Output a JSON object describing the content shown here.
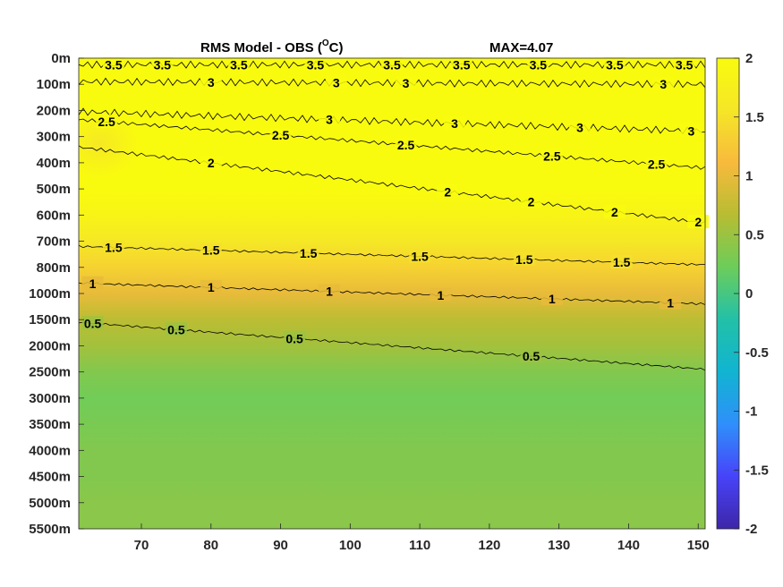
{
  "chart_data": {
    "type": "heatmap",
    "title": "RMS Model - OBS (",
    "title_unit_sup": "O",
    "title_unit_end": "C)",
    "max_label": "MAX=4.07",
    "xlabel": "",
    "ylabel": "",
    "x_ticks": [
      "70",
      "80",
      "90",
      "100",
      "110",
      "120",
      "130",
      "140",
      "150"
    ],
    "x_tick_values": [
      70,
      80,
      90,
      100,
      110,
      120,
      130,
      140,
      150
    ],
    "xlim": [
      61,
      151
    ],
    "y_ticks": [
      "0m",
      "100m",
      "200m",
      "300m",
      "400m",
      "500m",
      "600m",
      "700m",
      "800m",
      "1000m",
      "1500m",
      "2000m",
      "2500m",
      "3000m",
      "3500m",
      "4000m",
      "4500m",
      "5000m",
      "5500m"
    ],
    "colorbar": {
      "ticks": [
        "2",
        "1.5",
        "1",
        "0.5",
        "0",
        "-0.5",
        "-1",
        "-1.5",
        "-2"
      ],
      "range": [
        -2,
        2
      ],
      "colormap": [
        "#3e26a8",
        "#4743f9",
        "#2f8ffb",
        "#11b4d1",
        "#22c0a8",
        "#6ccd5a",
        "#b7bd32",
        "#f8ba3d",
        "#f5e627",
        "#f9fb0e"
      ]
    },
    "value_profile": [
      {
        "depth": "0m",
        "value": 2.0
      },
      {
        "depth": "100m",
        "value": 2.0
      },
      {
        "depth": "200m",
        "value": 2.0
      },
      {
        "depth": "300m",
        "value": 2.0
      },
      {
        "depth": "400m",
        "value": 2.0
      },
      {
        "depth": "500m",
        "value": 2.0
      },
      {
        "depth": "600m",
        "value": 1.85
      },
      {
        "depth": "700m",
        "value": 1.6
      },
      {
        "depth": "800m",
        "value": 1.35
      },
      {
        "depth": "1000m",
        "value": 1.0
      },
      {
        "depth": "1500m",
        "value": 0.7
      },
      {
        "depth": "2000m",
        "value": 0.55
      },
      {
        "depth": "2500m",
        "value": 0.35
      },
      {
        "depth": "3000m",
        "value": 0.25
      },
      {
        "depth": "3500m",
        "value": 0.3
      },
      {
        "depth": "4000m",
        "value": 0.35
      },
      {
        "depth": "4500m",
        "value": 0.35
      },
      {
        "depth": "5000m",
        "value": 0.4
      },
      {
        "depth": "5500m",
        "value": 0.4
      }
    ],
    "contours": [
      {
        "level": 3.5,
        "label": "3.5",
        "y_depth_index": [
          0.25,
          0.25
        ],
        "labels_x": [
          66,
          73,
          84,
          95,
          106,
          116,
          127,
          138,
          148
        ]
      },
      {
        "level": 3,
        "label": "3",
        "y_depth_index": [
          0.9,
          1.0
        ],
        "labels_x": [
          80,
          98,
          108,
          145
        ]
      },
      {
        "level": 3,
        "label": "3",
        "y_depth_index": [
          2.05,
          2.8
        ],
        "labels_x": [
          97,
          115,
          133,
          149
        ]
      },
      {
        "level": 2.5,
        "label": "2.5",
        "y_depth_index": [
          2.35,
          4.2
        ],
        "labels_x": [
          65,
          90,
          108,
          129,
          144
        ]
      },
      {
        "level": 2,
        "label": "2",
        "y_depth_index": [
          3.4,
          6.3
        ],
        "labels_x": [
          80,
          114,
          126,
          138,
          150
        ]
      },
      {
        "level": 1.5,
        "label": "1.5",
        "y_depth_index": [
          7.2,
          7.9
        ],
        "labels_x": [
          66,
          80,
          94,
          110,
          125,
          139
        ]
      },
      {
        "level": 1,
        "label": "1",
        "y_depth_index": [
          8.6,
          9.4
        ],
        "labels_x": [
          63,
          80,
          97,
          113,
          129,
          146
        ]
      },
      {
        "level": 0.5,
        "label": "0.5",
        "y_depth_index": [
          10.1,
          11.9
        ],
        "labels_x": [
          63,
          75,
          92,
          126
        ]
      }
    ]
  }
}
